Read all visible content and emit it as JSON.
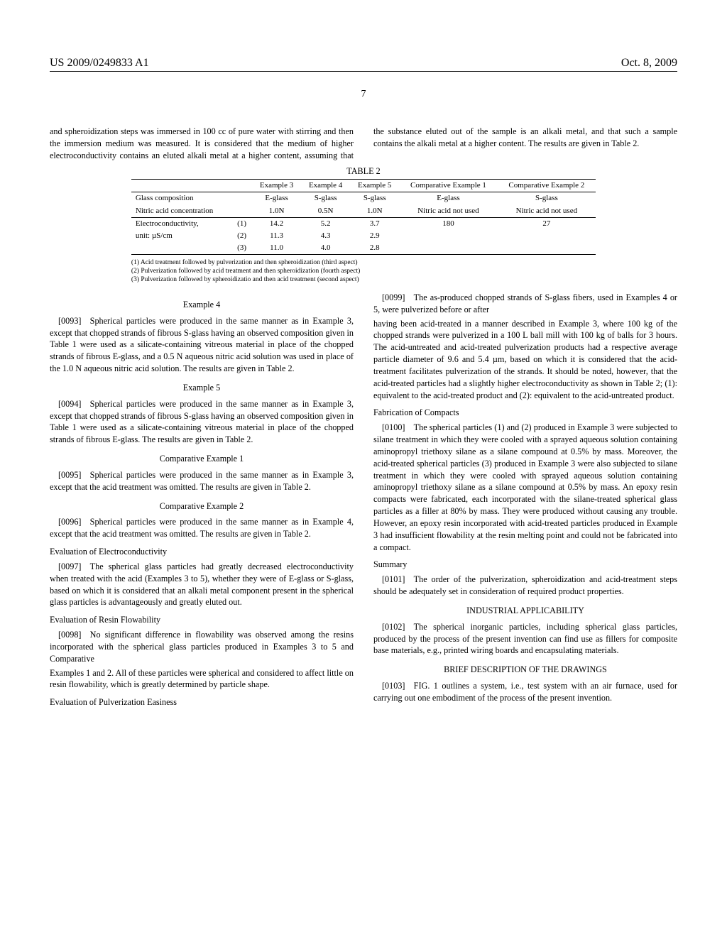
{
  "header": {
    "left": "US 2009/0249833 A1",
    "right": "Oct. 8, 2009"
  },
  "page_number": "7",
  "col1_intro": "and spheroidization steps was immersed in 100 cc of pure water with stirring and then the immersion medium was measured. It is considered that the medium of higher electroconductivity contains an eluted alkali metal at a higher content, assuming that the substance eluted out of the sample is an alkali metal, and that such a sample contains the alkali metal at a higher content. The results are given in Table 2.",
  "col2_intro_a": "Examples 1 and 2. All of these particles were spherical and considered to affect little on resin flowability, which is greatly determined by particle shape.",
  "col2_eval_pulv_title": "Evaluation of Pulverization Easiness",
  "p0099": "[0099] The as-produced chopped strands of S-glass fibers, used in Examples 4 or 5, were pulverized before or after",
  "table": {
    "title": "TABLE 2",
    "headers": [
      "",
      "",
      "Example 3",
      "Example 4",
      "Example 5",
      "Comparative Example 1",
      "Comparative Example 2"
    ],
    "rows": [
      [
        "Glass composition",
        "",
        "E-glass",
        "S-glass",
        "S-glass",
        "E-glass",
        "S-glass"
      ],
      [
        "Nitric acid concentration",
        "",
        "1.0N",
        "0.5N",
        "1.0N",
        "Nitric acid not used",
        "Nitric acid not used"
      ],
      [
        "Electroconductivity,",
        "(1)",
        "14.2",
        "5.2",
        "3.7",
        "180",
        "27"
      ],
      [
        "unit: µS/cm",
        "(2)",
        "11.3",
        "4.3",
        "2.9",
        "",
        ""
      ],
      [
        "",
        "(3)",
        "11.0",
        "4.0",
        "2.8",
        "",
        ""
      ]
    ],
    "notes": [
      "(1) Acid treatment followed by pulverization and then spheroidization (third aspect)",
      "(2) Pulverization followed by acid treatment and then spheroidization (fourth aspect)",
      "(3) Pulverization followed by spheroidizatio and then acid treatment (second aspect)"
    ]
  },
  "ex4_title": "Example 4",
  "p0093": "[0093] Spherical particles were produced in the same manner as in Example 3, except that chopped strands of fibrous S-glass having an observed composition given in Table 1 were used as a silicate-containing vitreous material in place of the chopped strands of fibrous E-glass, and a 0.5 N aqueous nitric acid solution was used in place of the 1.0 N aqueous nitric acid solution. The results are given in Table 2.",
  "ex5_title": "Example 5",
  "p0094": "[0094] Spherical particles were produced in the same manner as in Example 3, except that chopped strands of fibrous S-glass having an observed composition given in Table 1 were used as a silicate-containing vitreous material in place of the chopped strands of fibrous E-glass. The results are given in Table 2.",
  "ce1_title": "Comparative Example 1",
  "p0095": "[0095] Spherical particles were produced in the same manner as in Example 3, except that the acid treatment was omitted. The results are given in Table 2.",
  "ce2_title": "Comparative Example 2",
  "p0096": "[0096] Spherical particles were produced in the same manner as in Example 4, except that the acid treatment was omitted. The results are given in Table 2.",
  "eval_ec_title": "Evaluation of Electroconductivity",
  "p0097": "[0097] The spherical glass particles had greatly decreased electroconductivity when treated with the acid (Examples 3 to 5), whether they were of E-glass or S-glass, based on which it is considered that an alkali metal component present in the spherical glass particles is advantageously and greatly eluted out.",
  "eval_rf_title": "Evaluation of Resin Flowability",
  "p0098": "[0098] No significant difference in flowability was observed among the resins incorporated with the spherical glass particles produced in Examples 3 to 5 and Comparative",
  "p0099_cont": "having been acid-treated in a manner described in Example 3, where 100 kg of the chopped strands were pulverized in a 100 L ball mill with 100 kg of balls for 3 hours. The acid-untreated and acid-treated pulverization products had a respective average particle diameter of 9.6 and 5.4 µm, based on which it is considered that the acid-treatment facilitates pulverization of the strands. It should be noted, however, that the acid-treated particles had a slightly higher electroconductivity as shown in Table 2; (1): equivalent to the acid-treated product and (2): equivalent to the acid-untreated product.",
  "fab_title": "Fabrication of Compacts",
  "p0100": "[0100] The spherical particles (1) and (2) produced in Example 3 were subjected to silane treatment in which they were cooled with a sprayed aqueous solution containing aminopropyl triethoxy silane as a silane compound at 0.5% by mass. Moreover, the acid-treated spherical particles (3) produced in Example 3 were also subjected to silane treatment in which they were cooled with sprayed aqueous solution containing aminopropyl triethoxy silane as a silane compound at 0.5% by mass. An epoxy resin compacts were fabricated, each incorporated with the silane-treated spherical glass particles as a filler at 80% by mass. They were produced without causing any trouble. However, an epoxy resin incorporated with acid-treated particles produced in Example 3 had insufficient flowability at the resin melting point and could not be fabricated into a compact.",
  "summary_title": "Summary",
  "p0101": "[0101] The order of the pulverization, spheroidization and acid-treatment steps should be adequately set in consideration of required product properties.",
  "indapp_title": "INDUSTRIAL APPLICABILITY",
  "p0102": "[0102] The spherical inorganic particles, including spherical glass particles, produced by the process of the present invention can find use as fillers for composite base materials, e.g., printed wiring boards and encapsulating materials.",
  "brief_title": "BRIEF DESCRIPTION OF THE DRAWINGS",
  "p0103": "[0103] FIG. 1 outlines a system, i.e., test system with an air furnace, used for carrying out one embodiment of the process of the present invention."
}
